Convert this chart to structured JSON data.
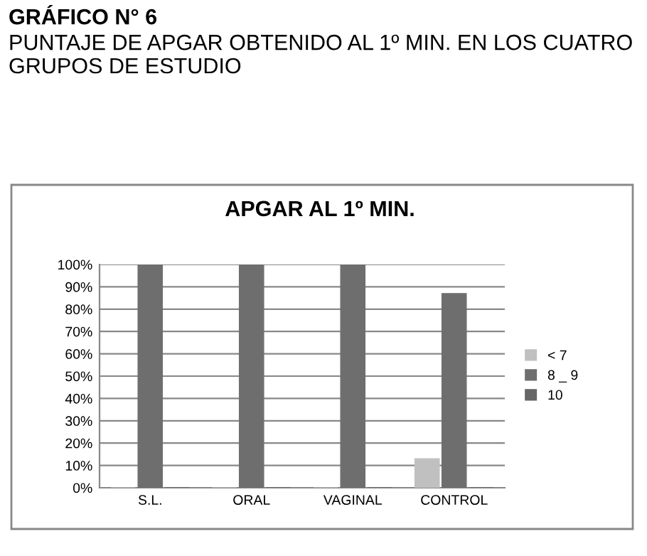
{
  "chart_data": {
    "type": "bar",
    "title": "APGAR AL 1º MIN.",
    "annotations": [
      "GRÁFICO N° 6",
      "PUNTAJE DE APGAR OBTENIDO AL 1º MIN. EN LOS CUATRO GRUPOS DE ESTUDIO"
    ],
    "categories": [
      "S.L.",
      "ORAL",
      "VAGINAL",
      "CONTROL"
    ],
    "series": [
      {
        "name": "< 7",
        "color": "#c0c0c0",
        "values": [
          0,
          0,
          0,
          13
        ]
      },
      {
        "name": "8 _ 9",
        "color": "#6e6e6e",
        "values": [
          100,
          100,
          100,
          87
        ]
      },
      {
        "name": "10",
        "color": "#666666",
        "values": [
          0,
          0,
          0,
          0
        ]
      }
    ],
    "ylim": [
      0,
      100
    ],
    "yticks": [
      {
        "value": 0,
        "label": "0%"
      },
      {
        "value": 10,
        "label": "10%"
      },
      {
        "value": 20,
        "label": "20%"
      },
      {
        "value": 30,
        "label": "30%"
      },
      {
        "value": 40,
        "label": "40%"
      },
      {
        "value": 50,
        "label": "50%"
      },
      {
        "value": 60,
        "label": "60%"
      },
      {
        "value": 70,
        "label": "70%"
      },
      {
        "value": 80,
        "label": "80%"
      },
      {
        "value": 90,
        "label": "90%"
      },
      {
        "value": 100,
        "label": "100%"
      }
    ],
    "grid": "y",
    "legend": "right"
  }
}
